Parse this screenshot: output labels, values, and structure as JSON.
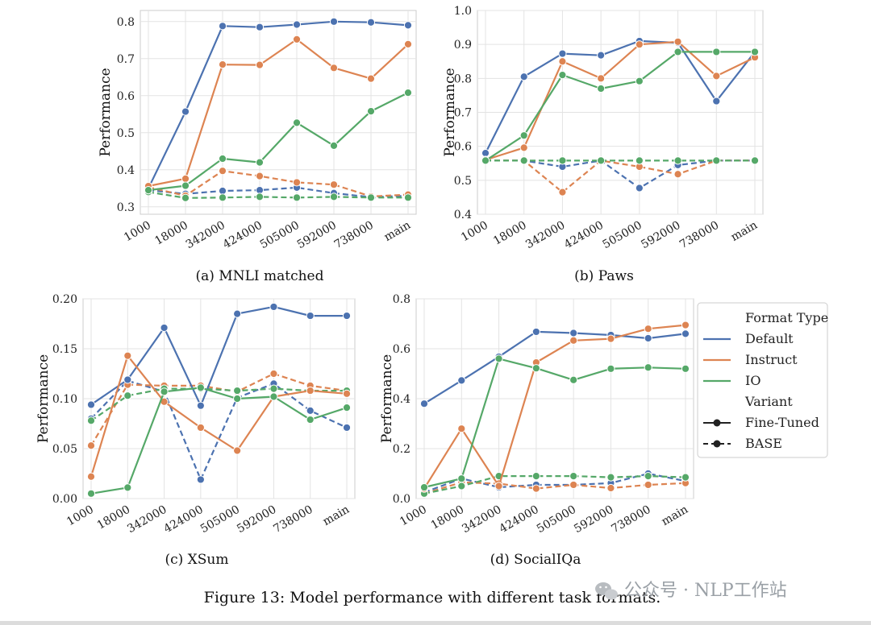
{
  "colors": {
    "Default": "#4c72b0",
    "Instruct": "#dd8452",
    "IO": "#55a868"
  },
  "legend": {
    "format_title": "Format Type",
    "formats": [
      "Default",
      "Instruct",
      "IO"
    ],
    "variant_title": "Variant",
    "variants": [
      "Fine-Tuned",
      "BASE"
    ]
  },
  "figure_caption": "Figure 13: Model performance with different task formats.",
  "watermark": {
    "text": "公众号 · NLP工作站",
    "icon": "wechat-icon"
  },
  "chart_data": [
    {
      "type": "line",
      "caption": "(a) MNLI matched",
      "ylabel": "Performance",
      "categories": [
        "1000",
        "18000",
        "342000",
        "424000",
        "505000",
        "592000",
        "738000",
        "main"
      ],
      "ylim": [
        0.28,
        0.83
      ],
      "yticks": [
        0.3,
        0.4,
        0.5,
        0.6,
        0.7,
        0.8
      ],
      "ytick_labels": [
        "0.3",
        "0.4",
        "0.5",
        "0.6",
        "0.7",
        "0.8"
      ],
      "grid": true,
      "series": [
        {
          "format": "Default",
          "variant": "Fine-Tuned",
          "values": [
            0.35,
            0.557,
            0.788,
            0.785,
            0.792,
            0.8,
            0.798,
            0.79
          ]
        },
        {
          "format": "Instruct",
          "variant": "Fine-Tuned",
          "values": [
            0.356,
            0.376,
            0.684,
            0.683,
            0.752,
            0.675,
            0.646,
            0.739
          ]
        },
        {
          "format": "IO",
          "variant": "Fine-Tuned",
          "values": [
            0.345,
            0.357,
            0.43,
            0.42,
            0.527,
            0.465,
            0.558,
            0.608
          ]
        },
        {
          "format": "Default",
          "variant": "BASE",
          "values": [
            0.345,
            0.335,
            0.343,
            0.345,
            0.352,
            0.337,
            0.326,
            0.33
          ]
        },
        {
          "format": "Instruct",
          "variant": "BASE",
          "values": [
            0.353,
            0.33,
            0.397,
            0.383,
            0.366,
            0.36,
            0.328,
            0.333
          ]
        },
        {
          "format": "IO",
          "variant": "BASE",
          "values": [
            0.34,
            0.324,
            0.325,
            0.327,
            0.325,
            0.327,
            0.325,
            0.325
          ]
        }
      ]
    },
    {
      "type": "line",
      "caption": "(b) Paws",
      "ylabel": "Performance",
      "categories": [
        "1000",
        "18000",
        "342000",
        "424000",
        "505000",
        "592000",
        "738000",
        "main"
      ],
      "ylim": [
        0.4,
        1.0
      ],
      "yticks": [
        0.4,
        0.5,
        0.6,
        0.7,
        0.8,
        0.9,
        1.0
      ],
      "ytick_labels": [
        "0.4",
        "0.5",
        "0.6",
        "0.7",
        "0.8",
        "0.9",
        "1.0"
      ],
      "grid": true,
      "series": [
        {
          "format": "Default",
          "variant": "Fine-Tuned",
          "values": [
            0.58,
            0.805,
            0.873,
            0.868,
            0.91,
            0.905,
            0.733,
            0.878
          ]
        },
        {
          "format": "Instruct",
          "variant": "Fine-Tuned",
          "values": [
            0.56,
            0.596,
            0.85,
            0.8,
            0.9,
            0.908,
            0.807,
            0.862
          ]
        },
        {
          "format": "IO",
          "variant": "Fine-Tuned",
          "values": [
            0.558,
            0.632,
            0.81,
            0.77,
            0.792,
            0.878,
            0.878,
            0.878
          ]
        },
        {
          "format": "Default",
          "variant": "BASE",
          "values": [
            0.558,
            0.558,
            0.54,
            0.558,
            0.477,
            0.545,
            0.558,
            0.558
          ]
        },
        {
          "format": "Instruct",
          "variant": "BASE",
          "values": [
            0.558,
            0.558,
            0.465,
            0.558,
            0.54,
            0.518,
            0.558,
            0.558
          ]
        },
        {
          "format": "IO",
          "variant": "BASE",
          "values": [
            0.558,
            0.558,
            0.558,
            0.558,
            0.558,
            0.558,
            0.558,
            0.558
          ]
        }
      ]
    },
    {
      "type": "line",
      "caption": "(c) XSum",
      "ylabel": "Performance",
      "categories": [
        "1000",
        "18000",
        "342000",
        "424000",
        "505000",
        "592000",
        "738000",
        "main"
      ],
      "ylim": [
        0.0,
        0.2
      ],
      "yticks": [
        0.0,
        0.05,
        0.1,
        0.15,
        0.2
      ],
      "ytick_labels": [
        "0.00",
        "0.05",
        "0.10",
        "0.15",
        "0.20"
      ],
      "grid": true,
      "series": [
        {
          "format": "Default",
          "variant": "Fine-Tuned",
          "values": [
            0.094,
            0.119,
            0.171,
            0.093,
            0.185,
            0.192,
            0.183,
            0.183
          ]
        },
        {
          "format": "Instruct",
          "variant": "Fine-Tuned",
          "values": [
            0.022,
            0.143,
            0.097,
            0.071,
            0.048,
            0.102,
            0.108,
            0.105
          ]
        },
        {
          "format": "IO",
          "variant": "Fine-Tuned",
          "values": [
            0.005,
            0.011,
            0.107,
            0.111,
            0.1,
            0.102,
            0.079,
            0.091
          ]
        },
        {
          "format": "Default",
          "variant": "BASE",
          "values": [
            0.08,
            0.118,
            0.107,
            0.019,
            0.101,
            0.115,
            0.088,
            0.071
          ]
        },
        {
          "format": "Instruct",
          "variant": "BASE",
          "values": [
            0.053,
            0.114,
            0.113,
            0.113,
            0.107,
            0.125,
            0.113,
            0.108
          ]
        },
        {
          "format": "IO",
          "variant": "BASE",
          "values": [
            0.078,
            0.103,
            0.11,
            0.11,
            0.108,
            0.11,
            0.108,
            0.108
          ]
        }
      ]
    },
    {
      "type": "line",
      "caption": "(d) SocialIQa",
      "ylabel": "Performance",
      "categories": [
        "1000",
        "18000",
        "342000",
        "424000",
        "505000",
        "592000",
        "738000",
        "main"
      ],
      "ylim": [
        0.0,
        0.8
      ],
      "yticks": [
        0.0,
        0.2,
        0.4,
        0.6,
        0.8
      ],
      "ytick_labels": [
        "0.0",
        "0.2",
        "0.4",
        "0.6",
        "0.8"
      ],
      "grid": true,
      "legend_position": "right",
      "series": [
        {
          "format": "Default",
          "variant": "Fine-Tuned",
          "values": [
            0.38,
            0.473,
            0.568,
            0.668,
            0.663,
            0.655,
            0.642,
            0.66
          ]
        },
        {
          "format": "Instruct",
          "variant": "Fine-Tuned",
          "values": [
            0.04,
            0.28,
            0.05,
            0.545,
            0.633,
            0.64,
            0.68,
            0.695
          ]
        },
        {
          "format": "IO",
          "variant": "Fine-Tuned",
          "values": [
            0.045,
            0.08,
            0.56,
            0.522,
            0.475,
            0.52,
            0.525,
            0.52
          ]
        },
        {
          "format": "Default",
          "variant": "BASE",
          "values": [
            0.025,
            0.08,
            0.045,
            0.055,
            0.055,
            0.062,
            0.1,
            0.07
          ]
        },
        {
          "format": "Instruct",
          "variant": "BASE",
          "values": [
            0.02,
            0.065,
            0.06,
            0.04,
            0.055,
            0.042,
            0.055,
            0.062
          ]
        },
        {
          "format": "IO",
          "variant": "BASE",
          "values": [
            0.02,
            0.05,
            0.09,
            0.09,
            0.09,
            0.085,
            0.09,
            0.085
          ]
        }
      ]
    }
  ]
}
